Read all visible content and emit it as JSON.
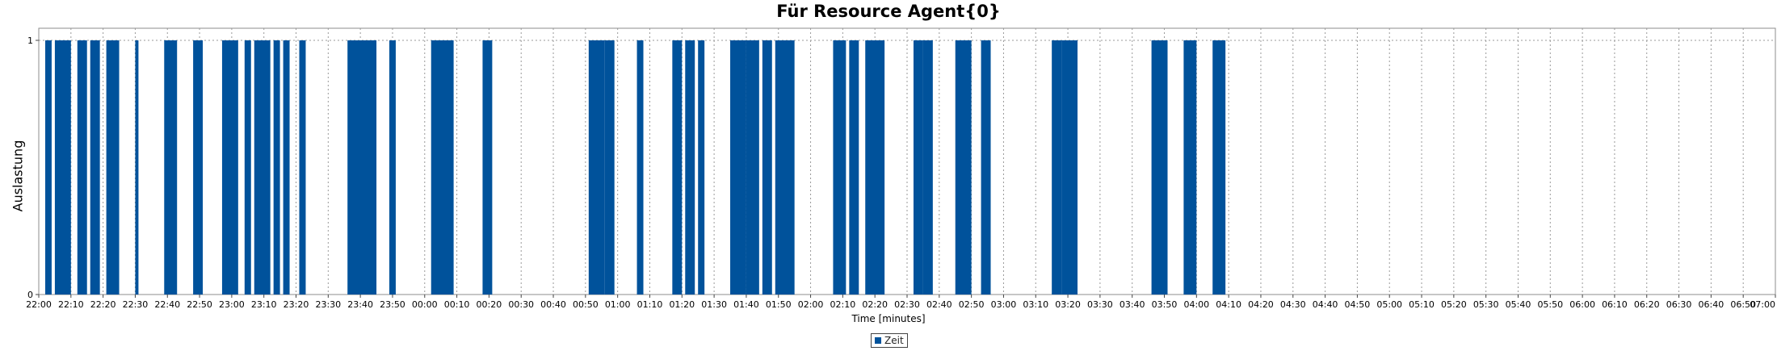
{
  "chart_data": {
    "type": "bar",
    "title": "Für Resource Agent{0}",
    "ylabel": "Auslastung",
    "xlabel": "Time [minutes]",
    "ylim": [
      0,
      1
    ],
    "yticks": [
      "0",
      "1"
    ],
    "xlim": [
      "22:00",
      "07:00"
    ],
    "xticks": [
      "22:00",
      "22:10",
      "22:20",
      "22:30",
      "22:40",
      "22:50",
      "23:00",
      "23:10",
      "23:20",
      "23:30",
      "23:40",
      "23:50",
      "00:00",
      "00:10",
      "00:20",
      "00:30",
      "00:40",
      "00:50",
      "01:00",
      "01:10",
      "01:20",
      "01:30",
      "01:40",
      "01:50",
      "02:00",
      "02:10",
      "02:20",
      "02:30",
      "02:40",
      "02:50",
      "03:00",
      "03:10",
      "03:20",
      "03:30",
      "03:40",
      "03:50",
      "04:00",
      "04:10",
      "04:20",
      "04:30",
      "04:40",
      "04:50",
      "05:00",
      "05:10",
      "05:20",
      "05:30",
      "05:40",
      "05:50",
      "06:00",
      "06:10",
      "06:20",
      "06:30",
      "06:40",
      "06:50",
      "07:00"
    ],
    "grid": true,
    "legend_position": "bottom",
    "series": [
      {
        "name": "Zeit",
        "color": "#00529B",
        "intervals": [
          {
            "start": "22:02",
            "end": "22:04",
            "value": 1
          },
          {
            "start": "22:05",
            "end": "22:10",
            "value": 1
          },
          {
            "start": "22:12",
            "end": "22:15",
            "value": 1
          },
          {
            "start": "22:16",
            "end": "22:19",
            "value": 1
          },
          {
            "start": "22:21",
            "end": "22:25",
            "value": 1
          },
          {
            "start": "22:30",
            "end": "22:31",
            "value": 1
          },
          {
            "start": "22:39",
            "end": "22:43",
            "value": 1
          },
          {
            "start": "22:48",
            "end": "22:51",
            "value": 1
          },
          {
            "start": "22:57",
            "end": "23:02",
            "value": 1
          },
          {
            "start": "23:04",
            "end": "23:06",
            "value": 1
          },
          {
            "start": "23:07",
            "end": "23:12",
            "value": 1
          },
          {
            "start": "23:13",
            "end": "23:15",
            "value": 1
          },
          {
            "start": "23:16",
            "end": "23:18",
            "value": 1
          },
          {
            "start": "23:21",
            "end": "23:23",
            "value": 1
          },
          {
            "start": "23:36",
            "end": "23:45",
            "value": 1
          },
          {
            "start": "23:49",
            "end": "23:51",
            "value": 1
          },
          {
            "start": "00:02",
            "end": "00:09",
            "value": 1
          },
          {
            "start": "00:18",
            "end": "00:21",
            "value": 1
          },
          {
            "start": "00:51",
            "end": "00:56",
            "value": 1
          },
          {
            "start": "00:56",
            "end": "00:59",
            "value": 1
          },
          {
            "start": "01:06",
            "end": "01:08",
            "value": 1
          },
          {
            "start": "01:17",
            "end": "01:20",
            "value": 1
          },
          {
            "start": "01:21",
            "end": "01:24",
            "value": 1
          },
          {
            "start": "01:25",
            "end": "01:27",
            "value": 1
          },
          {
            "start": "01:35",
            "end": "01:40",
            "value": 1
          },
          {
            "start": "01:40",
            "end": "01:44",
            "value": 1
          },
          {
            "start": "01:45",
            "end": "01:48",
            "value": 1
          },
          {
            "start": "01:49",
            "end": "01:55",
            "value": 1
          },
          {
            "start": "02:07",
            "end": "02:11",
            "value": 1
          },
          {
            "start": "02:12",
            "end": "02:15",
            "value": 1
          },
          {
            "start": "02:17",
            "end": "02:23",
            "value": 1
          },
          {
            "start": "02:32",
            "end": "02:35",
            "value": 1
          },
          {
            "start": "02:35",
            "end": "02:38",
            "value": 1
          },
          {
            "start": "02:45",
            "end": "02:50",
            "value": 1
          },
          {
            "start": "02:53",
            "end": "02:56",
            "value": 1
          },
          {
            "start": "03:15",
            "end": "03:18",
            "value": 1
          },
          {
            "start": "03:18",
            "end": "03:23",
            "value": 1
          },
          {
            "start": "03:46",
            "end": "03:51",
            "value": 1
          },
          {
            "start": "03:56",
            "end": "04:00",
            "value": 1
          },
          {
            "start": "04:05",
            "end": "04:09",
            "value": 1
          }
        ]
      }
    ]
  },
  "legend": {
    "label": "Zeit",
    "color": "#00529B"
  }
}
